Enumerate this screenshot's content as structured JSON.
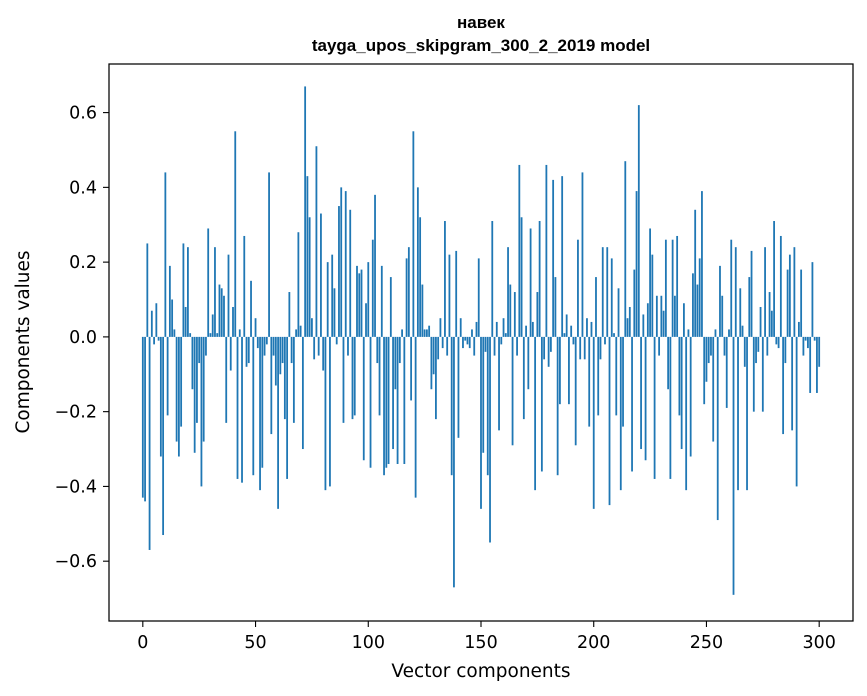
{
  "chart_data": {
    "type": "bar",
    "title": "навек",
    "subtitle": "tayga_upos_skipgram_300_2_2019 model",
    "xlabel": "Vector components",
    "ylabel": "Components values",
    "xlim": [
      -15,
      315
    ],
    "ylim": [
      -0.76,
      0.73
    ],
    "xticks": [
      0,
      50,
      100,
      150,
      200,
      250,
      300
    ],
    "yticks": [
      -0.6,
      -0.4,
      -0.2,
      0.0,
      0.2,
      0.4,
      0.6
    ],
    "ytick_labels": [
      "−0.6",
      "−0.4",
      "−0.2",
      "0.0",
      "0.2",
      "0.4",
      "0.6"
    ],
    "bar_color": "#1f77b4",
    "grid": false,
    "values": [
      -0.43,
      -0.44,
      0.25,
      -0.57,
      0.07,
      -0.02,
      0.09,
      -0.01,
      -0.32,
      -0.53,
      0.44,
      -0.21,
      0.19,
      0.1,
      0.02,
      -0.28,
      -0.32,
      -0.24,
      0.25,
      0.08,
      0.24,
      0.01,
      -0.14,
      -0.31,
      -0.23,
      -0.07,
      -0.4,
      -0.28,
      -0.05,
      0.29,
      0.01,
      0.06,
      0.24,
      0.01,
      0.14,
      0.13,
      0.11,
      -0.23,
      0.22,
      -0.09,
      0.08,
      0.55,
      -0.38,
      0.02,
      -0.39,
      0.27,
      -0.08,
      -0.07,
      0.15,
      -0.37,
      0.05,
      -0.03,
      -0.41,
      -0.35,
      -0.05,
      -0.02,
      0.44,
      -0.26,
      -0.05,
      -0.13,
      -0.46,
      -0.1,
      -0.07,
      -0.22,
      -0.38,
      0.12,
      -0.07,
      -0.23,
      0.02,
      0.28,
      0.03,
      -0.3,
      0.67,
      0.43,
      0.32,
      0.05,
      -0.06,
      0.51,
      -0.05,
      0.33,
      -0.09,
      -0.41,
      0.2,
      -0.4,
      0.22,
      0.13,
      -0.02,
      0.35,
      0.4,
      -0.23,
      0.39,
      -0.05,
      0.34,
      -0.22,
      -0.21,
      0.19,
      0.17,
      0.18,
      -0.33,
      0.09,
      0.2,
      -0.35,
      0.26,
      0.38,
      -0.07,
      -0.21,
      0.19,
      -0.37,
      -0.35,
      -0.34,
      0.16,
      -0.3,
      -0.14,
      -0.34,
      -0.07,
      0.02,
      -0.34,
      0.21,
      0.24,
      -0.17,
      0.55,
      -0.43,
      0.4,
      0.32,
      0.14,
      0.02,
      0.02,
      0.03,
      -0.14,
      -0.1,
      -0.22,
      -0.06,
      0.05,
      -0.03,
      0.31,
      -0.05,
      0.22,
      -0.37,
      -0.67,
      0.23,
      -0.27,
      0.05,
      -0.03,
      -0.01,
      -0.02,
      -0.03,
      0.02,
      -0.05,
      0.04,
      0.21,
      -0.46,
      -0.31,
      -0.04,
      -0.37,
      -0.55,
      0.31,
      -0.05,
      0.04,
      -0.25,
      -0.02,
      0.05,
      0.01,
      0.24,
      0.14,
      -0.29,
      0.12,
      -0.05,
      0.46,
      0.32,
      -0.22,
      0.03,
      -0.14,
      0.29,
      0.04,
      -0.41,
      0.12,
      0.31,
      -0.36,
      -0.06,
      0.46,
      -0.08,
      -0.04,
      0.42,
      0.16,
      -0.37,
      -0.18,
      0.43,
      0.01,
      0.06,
      -0.18,
      0.03,
      -0.02,
      -0.29,
      0.26,
      -0.06,
      0.44,
      -0.06,
      0.05,
      -0.24,
      0.04,
      -0.46,
      0.16,
      -0.21,
      -0.06,
      0.24,
      -0.02,
      0.24,
      -0.45,
      0.21,
      0.01,
      -0.21,
      0.13,
      -0.41,
      -0.24,
      0.47,
      0.05,
      0.08,
      -0.36,
      0.18,
      0.39,
      0.62,
      -0.3,
      0.06,
      -0.33,
      0.09,
      0.29,
      0.22,
      -0.38,
      0.11,
      -0.05,
      0.11,
      0.07,
      0.26,
      -0.14,
      -0.38,
      0.26,
      0.11,
      0.27,
      -0.21,
      -0.3,
      0.09,
      -0.41,
      0.02,
      -0.32,
      0.17,
      0.34,
      0.14,
      0.21,
      0.39,
      -0.18,
      -0.12,
      -0.07,
      -0.05,
      -0.28,
      0.02,
      -0.49,
      0.19,
      0.11,
      -0.05,
      -0.19,
      0.02,
      0.26,
      -0.69,
      0.24,
      -0.41,
      0.13,
      0.03,
      -0.08,
      -0.41,
      0.16,
      0.23,
      -0.2,
      -0.07,
      -0.04,
      0.08,
      -0.2,
      0.24,
      -0.05,
      0.12,
      0.07,
      0.31,
      -0.02,
      -0.03,
      0.27,
      -0.26,
      -0.07,
      0.18,
      0.22,
      -0.25,
      0.24,
      -0.4,
      0.04,
      0.18,
      -0.05,
      -0.01,
      -0.03,
      -0.15,
      0.2,
      -0.01,
      -0.15,
      -0.08
    ]
  }
}
